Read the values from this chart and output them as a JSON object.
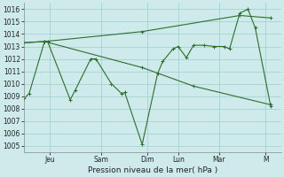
{
  "xlabel": "Pression niveau de la mer( hPa )",
  "bg_color": "#ceeaea",
  "grid_color": "#9ecece",
  "line_color": "#2d6e2d",
  "ylim": [
    1004.5,
    1016.5
  ],
  "yticks": [
    1005,
    1006,
    1007,
    1008,
    1009,
    1010,
    1011,
    1012,
    1013,
    1014,
    1015,
    1016
  ],
  "day_labels": [
    "Jeu",
    "Sam",
    "Dim",
    "Lun",
    "Mar",
    "M"
  ],
  "day_positions": [
    2.5,
    7.5,
    12.0,
    15.0,
    19.0,
    23.5
  ],
  "xlim": [
    0,
    25
  ],
  "series1_x": [
    0.0,
    0.5,
    2.0,
    2.3,
    4.5,
    5.0,
    6.5,
    7.0,
    8.5,
    9.5,
    9.8,
    11.5,
    13.0,
    13.5,
    14.5,
    15.0,
    15.8,
    16.5,
    17.5,
    18.5,
    19.5,
    20.0,
    21.0,
    21.8,
    22.5,
    24.0
  ],
  "series1_y": [
    1008.8,
    1009.2,
    1013.4,
    1013.4,
    1008.7,
    1009.5,
    1012.0,
    1012.0,
    1010.0,
    1009.2,
    1009.3,
    1005.1,
    1010.8,
    1011.8,
    1012.8,
    1013.0,
    1012.1,
    1013.1,
    1013.1,
    1013.0,
    1013.0,
    1012.8,
    1015.7,
    1016.0,
    1014.5,
    1008.2
  ],
  "series2_x": [
    0.0,
    2.0,
    11.5,
    21.0,
    24.0
  ],
  "series2_y": [
    1013.3,
    1013.4,
    1014.2,
    1015.5,
    1015.3
  ],
  "series3_x": [
    0.0,
    2.0,
    11.5,
    16.5,
    24.0
  ],
  "series3_y": [
    1013.3,
    1013.4,
    1011.3,
    1009.8,
    1008.3
  ]
}
